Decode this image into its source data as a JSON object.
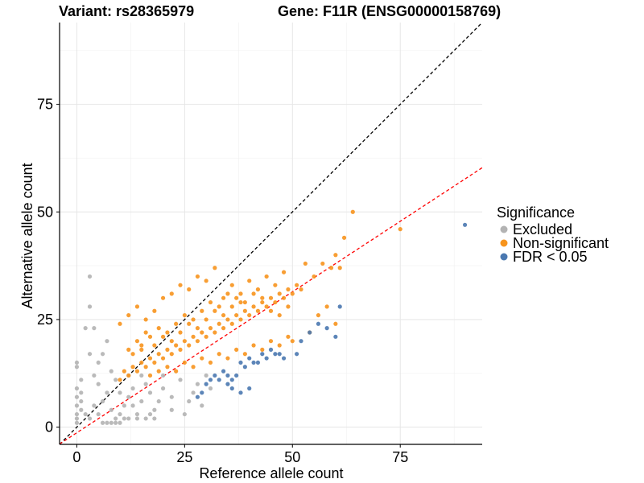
{
  "header": {
    "variant_title": "Variant: rs28365979",
    "gene_title": "Gene: F11R (ENSG00000158769)"
  },
  "chart_data": {
    "type": "scatter",
    "xlabel": "Reference allele count",
    "ylabel": "Alternative allele count",
    "xlim": [
      -4,
      94
    ],
    "ylim": [
      -4,
      94
    ],
    "x_ticks": [
      0,
      25,
      50,
      75
    ],
    "y_ticks": [
      0,
      25,
      50,
      75
    ],
    "grid": true,
    "legend_position": "right",
    "legend": {
      "title": "Significance",
      "entries": [
        {
          "label": "Excluded",
          "color": "#b3b3b3"
        },
        {
          "label": "Non-significant",
          "color": "#f7941d"
        },
        {
          "label": "FDR < 0.05",
          "color": "#4a78b0"
        }
      ]
    },
    "reference_lines": [
      {
        "name": "identity",
        "style": "dashed",
        "color": "#000000",
        "slope": 1,
        "intercept": 0
      },
      {
        "name": "fit",
        "style": "dashed",
        "color": "#ff0000",
        "slope": 0.655,
        "intercept": -1.3
      }
    ],
    "series": [
      {
        "name": "Excluded",
        "color": "#b3b3b3",
        "points": [
          [
            0,
            1
          ],
          [
            0,
            2
          ],
          [
            0,
            3
          ],
          [
            0,
            5
          ],
          [
            0,
            7
          ],
          [
            0,
            9
          ],
          [
            0,
            14
          ],
          [
            0,
            15
          ],
          [
            1,
            4
          ],
          [
            1,
            6
          ],
          [
            1,
            8
          ],
          [
            1,
            11
          ],
          [
            2,
            23
          ],
          [
            3,
            28
          ],
          [
            3,
            35
          ],
          [
            4,
            23
          ],
          [
            2,
            3
          ],
          [
            3,
            2
          ],
          [
            4,
            5
          ],
          [
            5,
            3
          ],
          [
            6,
            6
          ],
          [
            7,
            8
          ],
          [
            8,
            4
          ],
          [
            9,
            2
          ],
          [
            10,
            3
          ],
          [
            11,
            5
          ],
          [
            12,
            7
          ],
          [
            13,
            9
          ],
          [
            14,
            3
          ],
          [
            15,
            6
          ],
          [
            16,
            10
          ],
          [
            17,
            8
          ],
          [
            18,
            4
          ],
          [
            19,
            6
          ],
          [
            20,
            9
          ],
          [
            22,
            7
          ],
          [
            24,
            11
          ],
          [
            26,
            6
          ],
          [
            28,
            10
          ],
          [
            30,
            12
          ],
          [
            4,
            12
          ],
          [
            5,
            15
          ],
          [
            3,
            17
          ],
          [
            6,
            17
          ],
          [
            7,
            20
          ],
          [
            8,
            13
          ],
          [
            5,
            10
          ],
          [
            9,
            11
          ],
          [
            10,
            8
          ],
          [
            12,
            12
          ],
          [
            13,
            5
          ],
          [
            15,
            12
          ],
          [
            17,
            3
          ],
          [
            20,
            12
          ],
          [
            22,
            4
          ],
          [
            25,
            3
          ],
          [
            27,
            8
          ],
          [
            29,
            5
          ],
          [
            31,
            9
          ],
          [
            6,
            1
          ],
          [
            7,
            1
          ],
          [
            8,
            1
          ],
          [
            9,
            1
          ],
          [
            10,
            1
          ],
          [
            11,
            2
          ],
          [
            12,
            2
          ],
          [
            14,
            2
          ],
          [
            16,
            2
          ],
          [
            18,
            2
          ]
        ]
      },
      {
        "name": "Non-significant",
        "color": "#f7941d",
        "points": [
          [
            10,
            11
          ],
          [
            11,
            13
          ],
          [
            12,
            12
          ],
          [
            13,
            14
          ],
          [
            14,
            13
          ],
          [
            15,
            15
          ],
          [
            16,
            14
          ],
          [
            17,
            16
          ],
          [
            18,
            15
          ],
          [
            19,
            17
          ],
          [
            20,
            16
          ],
          [
            21,
            18
          ],
          [
            22,
            17
          ],
          [
            23,
            19
          ],
          [
            24,
            18
          ],
          [
            25,
            20
          ],
          [
            26,
            19
          ],
          [
            27,
            21
          ],
          [
            28,
            20
          ],
          [
            29,
            22
          ],
          [
            30,
            21
          ],
          [
            31,
            23
          ],
          [
            32,
            22
          ],
          [
            33,
            24
          ],
          [
            34,
            23
          ],
          [
            35,
            25
          ],
          [
            36,
            24
          ],
          [
            37,
            26
          ],
          [
            38,
            25
          ],
          [
            39,
            27
          ],
          [
            40,
            26
          ],
          [
            41,
            28
          ],
          [
            42,
            27
          ],
          [
            43,
            29
          ],
          [
            44,
            28
          ],
          [
            45,
            30
          ],
          [
            46,
            29
          ],
          [
            47,
            31
          ],
          [
            48,
            30
          ],
          [
            49,
            32
          ],
          [
            50,
            31
          ],
          [
            51,
            33
          ],
          [
            52,
            32
          ],
          [
            10,
            24
          ],
          [
            12,
            26
          ],
          [
            14,
            28
          ],
          [
            16,
            25
          ],
          [
            18,
            27
          ],
          [
            20,
            30
          ],
          [
            22,
            31
          ],
          [
            24,
            33
          ],
          [
            26,
            32
          ],
          [
            28,
            35
          ],
          [
            30,
            34
          ],
          [
            32,
            37
          ],
          [
            34,
            30
          ],
          [
            36,
            33
          ],
          [
            38,
            31
          ],
          [
            40,
            34
          ],
          [
            42,
            32
          ],
          [
            44,
            35
          ],
          [
            46,
            33
          ],
          [
            48,
            36
          ],
          [
            53,
            38
          ],
          [
            55,
            35
          ],
          [
            57,
            38
          ],
          [
            59,
            37
          ],
          [
            60,
            40
          ],
          [
            61,
            37
          ],
          [
            62,
            44
          ],
          [
            64,
            50
          ],
          [
            75,
            46
          ],
          [
            54,
            22
          ],
          [
            56,
            26
          ],
          [
            58,
            28
          ],
          [
            60,
            24
          ],
          [
            15,
            19
          ],
          [
            17,
            21
          ],
          [
            19,
            23
          ],
          [
            21,
            22
          ],
          [
            23,
            24
          ],
          [
            25,
            26
          ],
          [
            27,
            25
          ],
          [
            29,
            27
          ],
          [
            31,
            29
          ],
          [
            33,
            28
          ],
          [
            35,
            31
          ],
          [
            37,
            30
          ],
          [
            39,
            29
          ],
          [
            41,
            31
          ],
          [
            43,
            30
          ],
          [
            45,
            27
          ],
          [
            47,
            26
          ],
          [
            49,
            28
          ],
          [
            12,
            18
          ],
          [
            14,
            20
          ],
          [
            16,
            22
          ],
          [
            18,
            19
          ],
          [
            20,
            21
          ],
          [
            22,
            20
          ],
          [
            24,
            22
          ],
          [
            26,
            24
          ],
          [
            28,
            23
          ],
          [
            30,
            25
          ],
          [
            32,
            27
          ],
          [
            34,
            26
          ],
          [
            36,
            28
          ],
          [
            38,
            29
          ],
          [
            13,
            17
          ],
          [
            15,
            18
          ],
          [
            17,
            12
          ],
          [
            19,
            13
          ],
          [
            21,
            14
          ],
          [
            23,
            13
          ],
          [
            25,
            15
          ],
          [
            27,
            14
          ],
          [
            29,
            16
          ],
          [
            31,
            15
          ],
          [
            33,
            17
          ],
          [
            35,
            16
          ],
          [
            37,
            18
          ],
          [
            39,
            17
          ],
          [
            41,
            19
          ],
          [
            43,
            18
          ],
          [
            45,
            20
          ],
          [
            47,
            19
          ],
          [
            49,
            21
          ],
          [
            50,
            20
          ]
        ]
      },
      {
        "name": "FDR < 0.05",
        "color": "#4a78b0",
        "points": [
          [
            32,
            12
          ],
          [
            33,
            11
          ],
          [
            34,
            13
          ],
          [
            35,
            12
          ],
          [
            36,
            11
          ],
          [
            37,
            12
          ],
          [
            38,
            15
          ],
          [
            39,
            14
          ],
          [
            40,
            16
          ],
          [
            41,
            15
          ],
          [
            42,
            15
          ],
          [
            43,
            17
          ],
          [
            44,
            16
          ],
          [
            45,
            18
          ],
          [
            46,
            17
          ],
          [
            47,
            17
          ],
          [
            48,
            16
          ],
          [
            51,
            17
          ],
          [
            52,
            20
          ],
          [
            54,
            22
          ],
          [
            56,
            24
          ],
          [
            58,
            23
          ],
          [
            60,
            21
          ],
          [
            61,
            28
          ],
          [
            90,
            47
          ],
          [
            30,
            10
          ],
          [
            31,
            11
          ],
          [
            35,
            10
          ],
          [
            36,
            9
          ],
          [
            38,
            8
          ],
          [
            40,
            9
          ],
          [
            28,
            7
          ],
          [
            29,
            8
          ]
        ]
      }
    ]
  }
}
